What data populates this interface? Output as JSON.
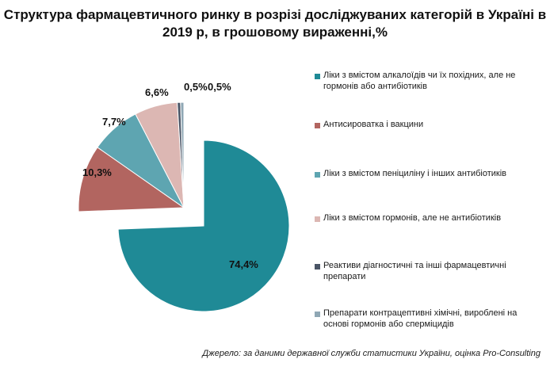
{
  "chart_data": {
    "type": "pie",
    "title": "Структура фармацевтичного ринку в розрізі досліджуваних категорій в Україні в 2019 р, в грошовому вираженні,%",
    "categories": [
      "Ліки з вмістом алкалоїдів чи їх похідних, але не гормонів або антибіотиків",
      "Антисироватка і вакцини",
      "Ліки з вмістом пеніциліну і інших антибіотиків",
      "Ліки з вмістом гормонів, але не антибіотиків",
      "Реактиви діагностичні та інші фармацевтичні препарати",
      "Препарати контрацептивні хімічні, вироблені на основі гормонів або сперміцидів"
    ],
    "values": [
      74.4,
      10.3,
      7.7,
      6.6,
      0.5,
      0.5
    ],
    "data_labels": [
      "74,4%",
      "10,3%",
      "7,7%",
      "6,6%",
      "0,5%",
      "0,5%"
    ],
    "colors": [
      "#1f8a96",
      "#b26560",
      "#5ea5b1",
      "#dcb7b3",
      "#4a5566",
      "#8fa7b4"
    ],
    "exploded": true,
    "legend_position": "right"
  },
  "source_note": "Джерело: за даними державної служби статистики України, оцінка Pro-Consulting"
}
